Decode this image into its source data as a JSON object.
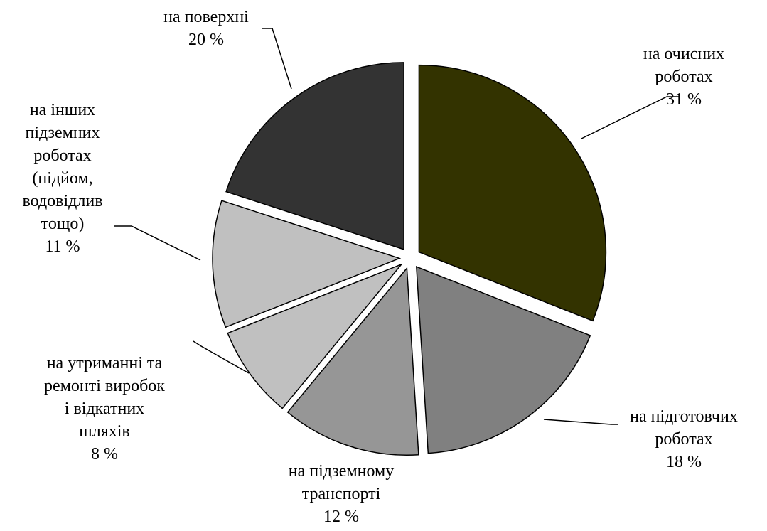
{
  "chart_data": {
    "type": "pie",
    "title": "",
    "legend": "none",
    "start_angle_deg": 0,
    "direction": "clockwise",
    "slices": [
      {
        "label_lines": [
          "на очисних",
          "роботах"
        ],
        "value": 31,
        "value_label": "31 %",
        "color": "#333300",
        "exploded": true
      },
      {
        "label_lines": [
          "на підготовчих",
          "роботах"
        ],
        "value": 18,
        "value_label": "18 %",
        "color": "#808080",
        "exploded": true
      },
      {
        "label_lines": [
          "на підземному",
          "транспорті"
        ],
        "value": 12,
        "value_label": "12 %",
        "color": "#969696",
        "exploded": true
      },
      {
        "label_lines": [
          "на утриманні та",
          "ремонті виробок",
          "і відкатних",
          "шляхів"
        ],
        "value": 8,
        "value_label": "8 %",
        "color": "#c0c0c0",
        "exploded": true
      },
      {
        "label_lines": [
          "на інших",
          "підземних",
          "роботах",
          "(підйом,",
          "водовідлив",
          "тощо)"
        ],
        "value": 11,
        "value_label": "11 %",
        "color": "#c0c0c0",
        "exploded": true
      },
      {
        "label_lines": [
          "на поверхні"
        ],
        "value": 20,
        "value_label": "20 %",
        "color": "#333333",
        "exploded": true
      }
    ]
  }
}
